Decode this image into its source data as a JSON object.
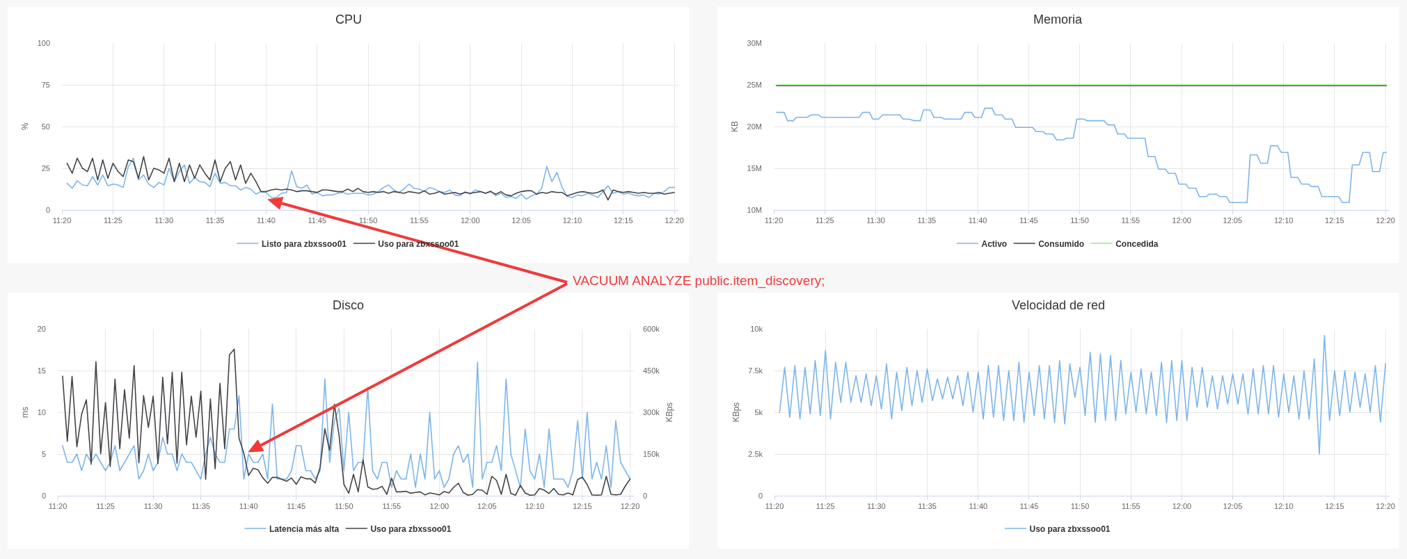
{
  "chart_data": [
    {
      "type": "line",
      "title": "CPU",
      "ylabel": "%",
      "grid": true,
      "legend": "bottom",
      "xlim": [
        11.3333,
        12.34
      ],
      "ylim": [
        0,
        100
      ],
      "yticks": [
        0,
        25,
        50,
        75,
        100
      ],
      "xticks": [
        {
          "value": 11.3333,
          "label": "11:20"
        },
        {
          "value": 11.4167,
          "label": "11:25"
        },
        {
          "value": 11.5,
          "label": "11:30"
        },
        {
          "value": 11.5833,
          "label": "11:35"
        },
        {
          "value": 11.6667,
          "label": "11:40"
        },
        {
          "value": 11.75,
          "label": "11:45"
        },
        {
          "value": 11.8333,
          "label": "11:50"
        },
        {
          "value": 11.9167,
          "label": "11:55"
        },
        {
          "value": 12,
          "label": "12:00"
        },
        {
          "value": 12.0833,
          "label": "12:05"
        },
        {
          "value": 12.1667,
          "label": "12:10"
        },
        {
          "value": 12.25,
          "label": "12:15"
        },
        {
          "value": 12.3333,
          "label": "12:20"
        }
      ],
      "x": [
        11.3417,
        11.35,
        11.3583,
        11.3667,
        11.375,
        11.3833,
        11.3917,
        11.4,
        11.4083,
        11.4167,
        11.425,
        11.4333,
        11.4417,
        11.45,
        11.4583,
        11.4667,
        11.475,
        11.4833,
        11.4917,
        11.5,
        11.5083,
        11.5167,
        11.525,
        11.5333,
        11.5417,
        11.55,
        11.5583,
        11.5667,
        11.575,
        11.5833,
        11.5917,
        11.6,
        11.6083,
        11.6167,
        11.625,
        11.6333,
        11.6417,
        11.65,
        11.6583,
        11.6667,
        11.675,
        11.6833,
        11.6917,
        11.7,
        11.7083,
        11.7167,
        11.725,
        11.7333,
        11.7417,
        11.75,
        11.7583,
        11.7667,
        11.775,
        11.7833,
        11.7917,
        11.8,
        11.8083,
        11.8167,
        11.825,
        11.8333,
        11.8417,
        11.85,
        11.8583,
        11.8667,
        11.875,
        11.8833,
        11.8917,
        11.9,
        11.9083,
        11.9167,
        11.925,
        11.9333,
        11.9417,
        11.95,
        11.9583,
        11.9667,
        11.975,
        11.9833,
        11.9917,
        12.0,
        12.0083,
        12.0167,
        12.025,
        12.0333,
        12.0417,
        12.05,
        12.0583,
        12.0667,
        12.075,
        12.0833,
        12.0917,
        12.1,
        12.1083,
        12.1167,
        12.125,
        12.1333,
        12.1417,
        12.15,
        12.1583,
        12.1667,
        12.175,
        12.1833,
        12.1917,
        12.2,
        12.2083,
        12.2167,
        12.225,
        12.2333,
        12.2417,
        12.25,
        12.2583,
        12.2667,
        12.275,
        12.2833,
        12.2917,
        12.3,
        12.3083,
        12.3167,
        12.325,
        12.3333
      ],
      "series": [
        {
          "name": "Listo para zbxssoo01",
          "color": "#7cb5ec",
          "values": [
            16,
            13,
            17.5,
            15,
            14.5,
            20,
            15,
            21,
            14.5,
            15.5,
            15,
            13.5,
            26,
            31,
            18,
            21,
            15.5,
            13.5,
            16.5,
            15,
            25,
            17,
            23,
            27,
            16,
            19.5,
            17,
            16.5,
            14,
            22,
            16,
            16.5,
            14.5,
            14.5,
            12,
            13.5,
            12.5,
            9.5,
            11,
            10.5,
            7.5,
            7.5,
            10,
            10.5,
            23.5,
            14,
            13,
            15,
            9.5,
            10.5,
            8.5,
            9,
            9,
            10,
            10.5,
            9.5,
            10,
            10,
            10,
            9,
            9.5,
            11,
            13.5,
            15,
            12,
            10.5,
            12.5,
            15.5,
            13,
            12.5,
            11,
            13.5,
            12.5,
            11,
            10.5,
            12,
            9,
            8.5,
            11,
            9.5,
            12,
            11,
            10,
            11.5,
            8.5,
            10,
            7.5,
            8,
            7,
            9.5,
            6.5,
            8.5,
            9.5,
            13,
            26,
            17,
            22.5,
            13.5,
            8,
            7.5,
            9,
            8.5,
            10,
            9,
            7.5,
            11,
            14.5,
            10,
            11,
            9.5,
            10,
            9,
            8.5,
            9,
            7.5,
            10,
            9.5,
            11,
            13.5,
            13.5
          ]
        },
        {
          "name": "Uso para zbxssoo01",
          "color": "#434348",
          "values": [
            28,
            22,
            31,
            25,
            23,
            31,
            18,
            30,
            19,
            28,
            23,
            20,
            30,
            29,
            19,
            32,
            18,
            25,
            24,
            22,
            31,
            17,
            28,
            17,
            27,
            19,
            27,
            22,
            18,
            30,
            17,
            25,
            29,
            18,
            27,
            16,
            22,
            17,
            11,
            11,
            12,
            12.5,
            12,
            12.5,
            12,
            11,
            11.5,
            11.5,
            11,
            10.5,
            12,
            12,
            11.5,
            11,
            11,
            12.5,
            11,
            13,
            11,
            10.5,
            11,
            10.5,
            11,
            10,
            11,
            10.5,
            10,
            11,
            10.5,
            10,
            11.5,
            9.5,
            10,
            11,
            9.5,
            10,
            10.5,
            9.5,
            10.5,
            10,
            10.5,
            11,
            10,
            11,
            9.5,
            11,
            9,
            8.5,
            10,
            11,
            11.5,
            11.5,
            9.5,
            10.5,
            10,
            11,
            10.5,
            10.5,
            8.5,
            9.5,
            10.5,
            11,
            10.5,
            10,
            10.5,
            12,
            6,
            12,
            11,
            10.5,
            11,
            10.5,
            10,
            10.5,
            10,
            10,
            10.5,
            9.5,
            10,
            10.5
          ]
        }
      ],
      "annotations": [
        "VACUUM ANALYZE public.item_discovery;"
      ]
    },
    {
      "type": "line",
      "title": "Memoria",
      "ylabel": "KB",
      "grid": true,
      "legend": "bottom",
      "xlim": [
        11.3333,
        12.34
      ],
      "ylim": [
        10000000,
        30000000
      ],
      "yticks": [
        {
          "value": 10000000,
          "label": "10M"
        },
        {
          "value": 15000000,
          "label": "15M"
        },
        {
          "value": 20000000,
          "label": "20M"
        },
        {
          "value": 25000000,
          "label": "25M"
        },
        {
          "value": 30000000,
          "label": "30M"
        }
      ],
      "xticks": [
        {
          "value": 11.3333,
          "label": "11:20"
        },
        {
          "value": 11.4167,
          "label": "11:25"
        },
        {
          "value": 11.5,
          "label": "11:30"
        },
        {
          "value": 11.5833,
          "label": "11:35"
        },
        {
          "value": 11.6667,
          "label": "11:40"
        },
        {
          "value": 11.75,
          "label": "11:45"
        },
        {
          "value": 11.8333,
          "label": "11:50"
        },
        {
          "value": 11.9167,
          "label": "11:55"
        },
        {
          "value": 12,
          "label": "12:00"
        },
        {
          "value": 12.0833,
          "label": "12:05"
        },
        {
          "value": 12.1667,
          "label": "12:10"
        },
        {
          "value": 12.25,
          "label": "12:15"
        },
        {
          "value": 12.3333,
          "label": "12:20"
        }
      ],
      "series": [
        {
          "name": "Activo",
          "color": "#7cb5ec",
          "x": [
            11.3378,
            11.3503,
            11.3557,
            11.3652,
            11.3705,
            11.3875,
            11.3948,
            11.406,
            11.412,
            11.4728,
            11.4787,
            11.4898,
            11.495,
            11.5047,
            11.5113,
            11.5395,
            11.5447,
            11.5543,
            11.5618,
            11.5728,
            11.5782,
            11.5892,
            11.5952,
            11.6063,
            11.6122,
            11.6397,
            11.6457,
            11.6567,
            11.662,
            11.673,
            11.6782,
            11.6902,
            11.6953,
            11.7065,
            11.7117,
            11.7227,
            11.7287,
            11.7562,
            11.762,
            11.7732,
            11.7783,
            11.7895,
            11.7955,
            11.8065,
            11.8117,
            11.8228,
            11.8288,
            11.84,
            11.8452,
            11.8733,
            11.8793,
            11.8897,
            11.8955,
            11.9067,
            11.9118,
            11.94,
            11.9453,
            11.9563,
            11.9623,
            11.9735,
            11.9787,
            11.9898,
            11.9957,
            12.0068,
            12.012,
            12.0232,
            12.029,
            12.0402,
            12.0453,
            12.0565,
            12.0625,
            12.0735,
            12.0788,
            12.107,
            12.1122,
            12.1233,
            12.1292,
            12.1403,
            12.1455,
            12.1567,
            12.1627,
            12.1737,
            12.1788,
            12.19,
            12.196,
            12.2072,
            12.2123,
            12.2233,
            12.2293,
            12.2568,
            12.2627,
            12.2738,
            12.279,
            12.2902,
            12.2962,
            12.3072,
            12.3123,
            12.3235,
            12.3295,
            12.3347
          ],
          "values": [
            21700000,
            21700000,
            20700000,
            20700000,
            21100000,
            21100000,
            21400000,
            21400000,
            21100000,
            21100000,
            21700000,
            21700000,
            20900000,
            20900000,
            21400000,
            21400000,
            20900000,
            20900000,
            20700000,
            20700000,
            22000000,
            22000000,
            21100000,
            21100000,
            20900000,
            20900000,
            21700000,
            21700000,
            21100000,
            21100000,
            22200000,
            22200000,
            21400000,
            21400000,
            20900000,
            20900000,
            19900000,
            19900000,
            19400000,
            19400000,
            19100000,
            19100000,
            18400000,
            18400000,
            18600000,
            18600000,
            20900000,
            20900000,
            20700000,
            20700000,
            20200000,
            20200000,
            19100000,
            19100000,
            18600000,
            18600000,
            16400000,
            16400000,
            14900000,
            14900000,
            14400000,
            14400000,
            13100000,
            13100000,
            12600000,
            12600000,
            11600000,
            11600000,
            11900000,
            11900000,
            11600000,
            11600000,
            10900000,
            10900000,
            16600000,
            16600000,
            15600000,
            15600000,
            17700000,
            17700000,
            16900000,
            16900000,
            13900000,
            13900000,
            13100000,
            13100000,
            12800000,
            12800000,
            11600000,
            11600000,
            10900000,
            10900000,
            15400000,
            15400000,
            16900000,
            16900000,
            14600000,
            14600000,
            16900000,
            16900000
          ]
        },
        {
          "name": "Consumido",
          "color": "#434348",
          "x": [
            11.3378,
            12.3347
          ],
          "values": [
            24900000,
            24900000
          ]
        },
        {
          "name": "Concedida",
          "color": "#90ed7d",
          "x": [
            11.3378,
            12.3347
          ],
          "values": [
            25000000,
            25000000
          ]
        }
      ]
    },
    {
      "type": "line",
      "title": "Disco",
      "ylabel": "ms",
      "y2label": "KBps",
      "grid": true,
      "legend": "bottom",
      "xlim": [
        11.3333,
        12.34
      ],
      "ylim": [
        0,
        20
      ],
      "yticks": [
        0,
        5,
        10,
        15,
        20
      ],
      "y2lim": [
        0,
        600000
      ],
      "y2ticks": [
        0,
        {
          "value": 150000,
          "label": "150k"
        },
        {
          "value": 300000,
          "label": "300k"
        },
        {
          "value": 450000,
          "label": "450k"
        },
        {
          "value": 600000,
          "label": "600k"
        }
      ],
      "xticks": [
        {
          "value": 11.3333,
          "label": "11:20"
        },
        {
          "value": 11.4167,
          "label": "11:25"
        },
        {
          "value": 11.5,
          "label": "11:30"
        },
        {
          "value": 11.5833,
          "label": "11:35"
        },
        {
          "value": 11.6667,
          "label": "11:40"
        },
        {
          "value": 11.75,
          "label": "11:45"
        },
        {
          "value": 11.8333,
          "label": "11:50"
        },
        {
          "value": 11.9167,
          "label": "11:55"
        },
        {
          "value": 12,
          "label": "12:00"
        },
        {
          "value": 12.0833,
          "label": "12:05"
        },
        {
          "value": 12.1667,
          "label": "12:10"
        },
        {
          "value": 12.25,
          "label": "12:15"
        },
        {
          "value": 12.3333,
          "label": "12:20"
        }
      ],
      "x": [
        11.3417,
        11.35,
        11.3583,
        11.3667,
        11.375,
        11.3833,
        11.3917,
        11.4,
        11.4083,
        11.4167,
        11.425,
        11.4333,
        11.4417,
        11.45,
        11.4583,
        11.4667,
        11.475,
        11.4833,
        11.4917,
        11.5,
        11.5083,
        11.5167,
        11.525,
        11.5333,
        11.5417,
        11.55,
        11.5583,
        11.5667,
        11.575,
        11.5833,
        11.5917,
        11.6,
        11.6083,
        11.6167,
        11.625,
        11.6333,
        11.6417,
        11.65,
        11.6583,
        11.6667,
        11.675,
        11.6833,
        11.6917,
        11.7,
        11.7083,
        11.7167,
        11.725,
        11.7333,
        11.7417,
        11.75,
        11.7583,
        11.7667,
        11.775,
        11.7833,
        11.7917,
        11.8,
        11.8083,
        11.8167,
        11.825,
        11.8333,
        11.8417,
        11.85,
        11.8583,
        11.8667,
        11.875,
        11.8833,
        11.8917,
        11.9,
        11.9083,
        11.9167,
        11.925,
        11.9333,
        11.9417,
        11.95,
        11.9583,
        11.9667,
        11.975,
        11.9833,
        11.9917,
        12.0,
        12.0083,
        12.0167,
        12.025,
        12.0333,
        12.0417,
        12.05,
        12.0583,
        12.0667,
        12.075,
        12.0833,
        12.0917,
        12.1,
        12.1083,
        12.1167,
        12.125,
        12.1333,
        12.1417,
        12.15,
        12.1583,
        12.1667,
        12.175,
        12.1833,
        12.1917,
        12.2,
        12.2083,
        12.2167,
        12.225,
        12.2333,
        12.2417,
        12.25,
        12.2583,
        12.2667,
        12.275,
        12.2833,
        12.2917,
        12.3,
        12.3083,
        12.3167,
        12.325,
        12.3333
      ],
      "series": [
        {
          "name": "Latencia más alta",
          "color": "#7cb5ec",
          "values": [
            6,
            4,
            4,
            5,
            3,
            5,
            4,
            5,
            4,
            3,
            4,
            6,
            3,
            4,
            5,
            6,
            2,
            3,
            5,
            3,
            4,
            7,
            5,
            5,
            3,
            5,
            4,
            4,
            3,
            2,
            5,
            7,
            5,
            4,
            4,
            8,
            8,
            12,
            2,
            5,
            4,
            4,
            5,
            2,
            11,
            2,
            2,
            2,
            3,
            6,
            6,
            3,
            3,
            2,
            3,
            14,
            4,
            9,
            10.5,
            3,
            10,
            3,
            4,
            4,
            13,
            3,
            2,
            4,
            4,
            1,
            3,
            2,
            2,
            5,
            1,
            5,
            2,
            10,
            2,
            3,
            1,
            2,
            5,
            6,
            4,
            5,
            1,
            16,
            2,
            4,
            4,
            6,
            3,
            14,
            5,
            3,
            1,
            8,
            3,
            2,
            5,
            1,
            8,
            2,
            2,
            2,
            1,
            3,
            9,
            2,
            10,
            2,
            4,
            2,
            6,
            1,
            9,
            4,
            3,
            2
          ]
        },
        {
          "name": "Uso para zbxssoo01",
          "color": "#434348",
          "axis": "y2",
          "values": [
            430000,
            196000,
            429000,
            176000,
            293000,
            345000,
            113000,
            482000,
            151000,
            335000,
            105000,
            419000,
            169000,
            381000,
            207000,
            468000,
            118000,
            360000,
            246000,
            358000,
            115000,
            426000,
            187000,
            444000,
            117000,
            444000,
            183000,
            358000,
            210000,
            376000,
            59000,
            348000,
            97000,
            404000,
            169000,
            507000,
            527000,
            207000,
            154000,
            73000,
            99000,
            93000,
            64000,
            45000,
            66000,
            66000,
            59000,
            52000,
            64000,
            41000,
            68000,
            61000,
            61000,
            46000,
            102000,
            241000,
            163000,
            329000,
            214000,
            41000,
            9000,
            77000,
            14000,
            129000,
            32000,
            23000,
            25000,
            34000,
            5000,
            63000,
            14000,
            14000,
            16000,
            9000,
            12000,
            14000,
            3000,
            10000,
            7000,
            3000,
            15000,
            10000,
            30000,
            45000,
            12000,
            2000,
            5000,
            22000,
            20000,
            5000,
            70000,
            55000,
            5000,
            77000,
            8000,
            2000,
            37000,
            10000,
            2000,
            3000,
            26000,
            20000,
            8000,
            26000,
            5000,
            3000,
            10000,
            3000,
            58000,
            67000,
            40000,
            3000,
            2000,
            3000,
            70000,
            5000,
            3000,
            5000,
            35000,
            60000
          ]
        }
      ]
    },
    {
      "type": "line",
      "title": "Velocidad de red",
      "ylabel": "KBps",
      "grid": true,
      "legend": "bottom",
      "xlim": [
        11.3333,
        12.34
      ],
      "ylim": [
        0,
        10000
      ],
      "yticks": [
        0,
        {
          "value": 2500,
          "label": "2.5k"
        },
        {
          "value": 5000,
          "label": "5k"
        },
        {
          "value": 7500,
          "label": "7.5k"
        },
        {
          "value": 10000,
          "label": "10k"
        }
      ],
      "xticks": [
        {
          "value": 11.3333,
          "label": "11:20"
        },
        {
          "value": 11.4167,
          "label": "11:25"
        },
        {
          "value": 11.5,
          "label": "11:30"
        },
        {
          "value": 11.5833,
          "label": "11:35"
        },
        {
          "value": 11.6667,
          "label": "11:40"
        },
        {
          "value": 11.75,
          "label": "11:45"
        },
        {
          "value": 11.8333,
          "label": "11:50"
        },
        {
          "value": 11.9167,
          "label": "11:55"
        },
        {
          "value": 12,
          "label": "12:00"
        },
        {
          "value": 12.0833,
          "label": "12:05"
        },
        {
          "value": 12.1667,
          "label": "12:10"
        },
        {
          "value": 12.25,
          "label": "12:15"
        },
        {
          "value": 12.3333,
          "label": "12:20"
        }
      ],
      "x": [
        11.3417,
        11.35,
        11.3583,
        11.3667,
        11.375,
        11.3833,
        11.3917,
        11.4,
        11.4083,
        11.4167,
        11.425,
        11.4333,
        11.4417,
        11.45,
        11.4583,
        11.4667,
        11.475,
        11.4833,
        11.4917,
        11.5,
        11.5083,
        11.5167,
        11.525,
        11.5333,
        11.5417,
        11.55,
        11.5583,
        11.5667,
        11.575,
        11.5833,
        11.5917,
        11.6,
        11.6083,
        11.6167,
        11.625,
        11.6333,
        11.6417,
        11.65,
        11.6583,
        11.6667,
        11.675,
        11.6833,
        11.6917,
        11.7,
        11.7083,
        11.7167,
        11.725,
        11.7333,
        11.7417,
        11.75,
        11.7583,
        11.7667,
        11.775,
        11.7833,
        11.7917,
        11.8,
        11.8083,
        11.8167,
        11.825,
        11.8333,
        11.8417,
        11.85,
        11.8583,
        11.8667,
        11.875,
        11.8833,
        11.8917,
        11.9,
        11.9083,
        11.9167,
        11.925,
        11.9333,
        11.9417,
        11.95,
        11.9583,
        11.9667,
        11.975,
        11.9833,
        11.9917,
        12.0,
        12.0083,
        12.0167,
        12.025,
        12.0333,
        12.0417,
        12.05,
        12.0583,
        12.0667,
        12.075,
        12.0833,
        12.0917,
        12.1,
        12.1083,
        12.1167,
        12.125,
        12.1333,
        12.1417,
        12.15,
        12.1583,
        12.1667,
        12.175,
        12.1833,
        12.1917,
        12.2,
        12.2083,
        12.2167,
        12.225,
        12.2333,
        12.2417,
        12.25,
        12.2583,
        12.2667,
        12.275,
        12.2833,
        12.2917,
        12.3,
        12.3083,
        12.3167,
        12.325,
        12.3333
      ],
      "series": [
        {
          "name": "Uso para zbxssoo01",
          "color": "#7cb5ec",
          "values": [
            5000,
            7700,
            4700,
            7800,
            4600,
            7700,
            4900,
            8100,
            4800,
            8700,
            4600,
            8000,
            5600,
            8000,
            5600,
            7200,
            5600,
            7300,
            5400,
            7200,
            5200,
            7900,
            4600,
            7400,
            5100,
            7700,
            5400,
            7500,
            5600,
            7600,
            5700,
            7000,
            5800,
            7100,
            5800,
            7200,
            5400,
            7400,
            5000,
            7400,
            4600,
            7800,
            4700,
            7800,
            4500,
            7500,
            4500,
            8000,
            4400,
            7400,
            4800,
            7800,
            4600,
            7800,
            4400,
            8100,
            4300,
            7900,
            5900,
            7700,
            4800,
            8600,
            4400,
            8500,
            4500,
            8400,
            4500,
            8100,
            4900,
            7400,
            5000,
            7600,
            4900,
            7400,
            4800,
            8000,
            4400,
            8100,
            4500,
            8100,
            4500,
            7700,
            5300,
            7700,
            5300,
            7200,
            5200,
            7200,
            5500,
            7300,
            5500,
            7300,
            4900,
            7600,
            4900,
            7800,
            4900,
            7800,
            4700,
            7300,
            5000,
            7200,
            4600,
            7500,
            4600,
            8200,
            2500,
            9600,
            4500,
            7500,
            4800,
            7500,
            5000,
            7400,
            5300,
            7300,
            5000,
            7800,
            4400,
            7900
          ]
        }
      ]
    }
  ]
}
